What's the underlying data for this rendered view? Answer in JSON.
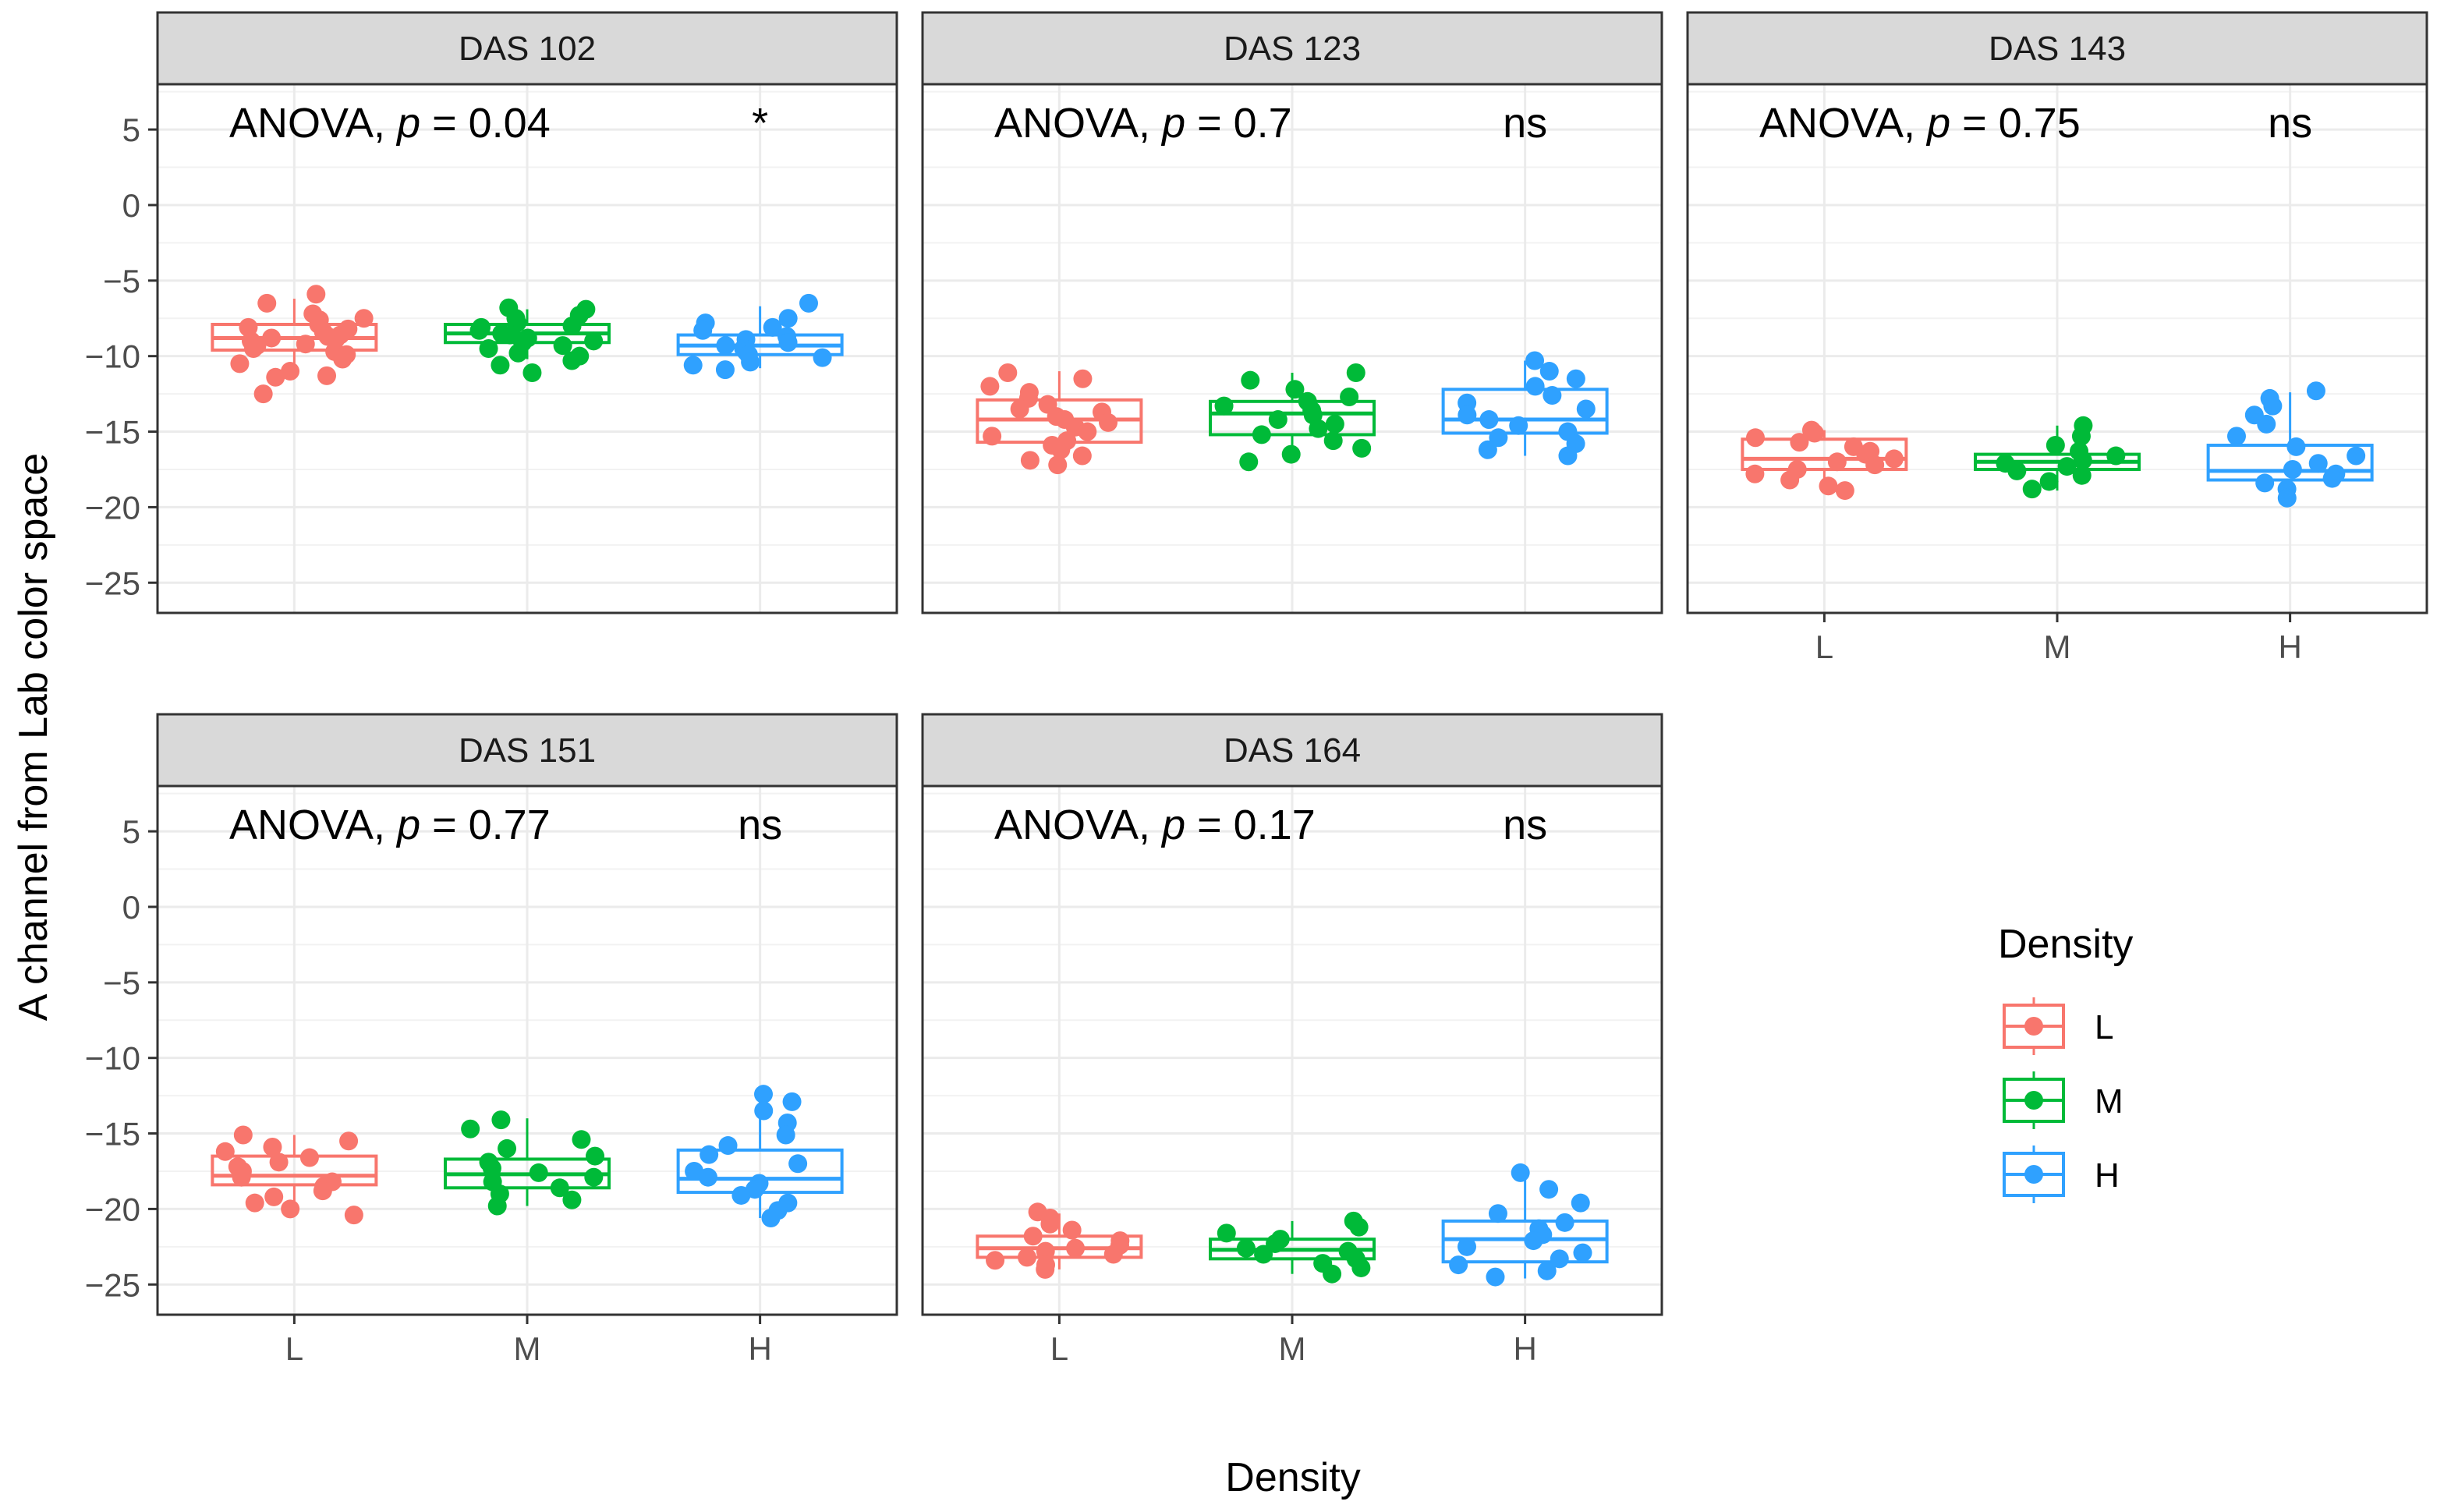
{
  "chart_data": {
    "type": "boxplot-jitter",
    "ylabel": "A channel from Lab color space",
    "xlabel": "Density",
    "categories": [
      "L",
      "M",
      "H"
    ],
    "yticks": [
      5,
      0,
      -5,
      -10,
      -15,
      -20,
      -25
    ],
    "ylim": [
      -27,
      8
    ],
    "grid": true,
    "legend": {
      "title": "Density",
      "placement": "right",
      "entries": [
        {
          "label": "L",
          "color": "#F8766D"
        },
        {
          "label": "M",
          "color": "#00BA38"
        },
        {
          "label": "H",
          "color": "#2FA1FF"
        }
      ]
    },
    "panels": [
      {
        "strip": "DAS 102",
        "anova_prefix": "ANOVA, ",
        "anova_p": "p",
        "anova_value": " = 0.04",
        "signif": "*",
        "boxes": [
          {
            "category": "L",
            "q1": -9.6,
            "median": -8.8,
            "q3": -7.9,
            "whisker_low": -11.5,
            "whisker_high": -6.2
          },
          {
            "category": "M",
            "q1": -9.1,
            "median": -8.5,
            "q3": -7.9,
            "whisker_low": -10.2,
            "whisker_high": -6.9
          },
          {
            "category": "H",
            "q1": -9.9,
            "median": -9.3,
            "q3": -8.6,
            "whisker_low": -10.8,
            "whisker_high": -6.7
          }
        ],
        "points": [
          {
            "category": "L",
            "values": [
              -5.9,
              -6.5,
              -7.2,
              -7.5,
              -7.6,
              -7.9,
              -8.1,
              -8.2,
              -8.4,
              -8.6,
              -8.7,
              -8.8,
              -8.9,
              -9.0,
              -9.2,
              -9.3,
              -9.5,
              -9.7,
              -9.9,
              -10.2,
              -10.5,
              -11.0,
              -11.3,
              -11.4,
              -12.5
            ]
          },
          {
            "category": "M",
            "values": [
              -6.8,
              -6.9,
              -7.3,
              -7.5,
              -7.8,
              -8.0,
              -8.1,
              -8.3,
              -8.5,
              -8.6,
              -8.8,
              -9.0,
              -9.1,
              -9.3,
              -9.5,
              -9.8,
              -10.0,
              -10.3,
              -10.6,
              -11.1
            ]
          },
          {
            "category": "H",
            "values": [
              -6.5,
              -7.5,
              -7.8,
              -8.1,
              -8.3,
              -8.7,
              -8.9,
              -9.1,
              -9.3,
              -9.5,
              -9.7,
              -9.9,
              -10.1,
              -10.4,
              -10.6,
              -10.9
            ]
          }
        ]
      },
      {
        "strip": "DAS 123",
        "anova_prefix": "ANOVA, ",
        "anova_p": "p",
        "anova_value": " = 0.7",
        "signif": "ns",
        "boxes": [
          {
            "category": "L",
            "q1": -15.7,
            "median": -14.2,
            "q3": -12.9,
            "whisker_low": -17.3,
            "whisker_high": -11.0
          },
          {
            "category": "M",
            "q1": -15.2,
            "median": -13.8,
            "q3": -13.0,
            "whisker_low": -17.0,
            "whisker_high": -11.1
          },
          {
            "category": "H",
            "q1": -15.1,
            "median": -14.2,
            "q3": -12.2,
            "whisker_low": -16.6,
            "whisker_high": -10.3
          }
        ],
        "points": [
          {
            "category": "L",
            "values": [
              -11.1,
              -11.5,
              -12.0,
              -12.4,
              -12.8,
              -13.2,
              -13.5,
              -13.7,
              -14.0,
              -14.2,
              -14.4,
              -14.7,
              -15.0,
              -15.3,
              -15.6,
              -15.9,
              -16.2,
              -16.6,
              -16.9,
              -17.2
            ]
          },
          {
            "category": "M",
            "values": [
              -11.1,
              -11.6,
              -12.2,
              -12.7,
              -13.0,
              -13.3,
              -13.6,
              -13.9,
              -14.2,
              -14.5,
              -14.8,
              -15.2,
              -15.6,
              -16.1,
              -16.5,
              -17.0
            ]
          },
          {
            "category": "H",
            "values": [
              -10.3,
              -11.0,
              -11.5,
              -12.0,
              -12.6,
              -13.1,
              -13.5,
              -13.9,
              -14.2,
              -14.6,
              -15.0,
              -15.4,
              -15.8,
              -16.2,
              -16.6
            ]
          }
        ]
      },
      {
        "strip": "DAS 143",
        "anova_prefix": "ANOVA, ",
        "anova_p": "p",
        "anova_value": " = 0.75",
        "signif": "ns",
        "boxes": [
          {
            "category": "L",
            "q1": -17.5,
            "median": -16.8,
            "q3": -15.5,
            "whisker_low": -18.9,
            "whisker_high": -14.9
          },
          {
            "category": "M",
            "q1": -17.5,
            "median": -17.0,
            "q3": -16.5,
            "whisker_low": -18.9,
            "whisker_high": -14.6
          },
          {
            "category": "H",
            "q1": -18.2,
            "median": -17.6,
            "q3": -15.9,
            "whisker_low": -19.5,
            "whisker_high": -12.4
          }
        ],
        "points": [
          {
            "category": "L",
            "values": [
              -14.9,
              -15.1,
              -15.4,
              -15.7,
              -16.0,
              -16.3,
              -16.5,
              -16.8,
              -17.0,
              -17.2,
              -17.5,
              -17.8,
              -18.2,
              -18.6,
              -18.9
            ]
          },
          {
            "category": "M",
            "values": [
              -14.6,
              -15.3,
              -15.9,
              -16.3,
              -16.6,
              -16.9,
              -17.1,
              -17.3,
              -17.6,
              -17.9,
              -18.3,
              -18.8
            ]
          },
          {
            "category": "H",
            "values": [
              -12.3,
              -12.8,
              -13.3,
              -13.9,
              -14.5,
              -15.3,
              -16.0,
              -16.6,
              -17.1,
              -17.5,
              -17.8,
              -18.1,
              -18.4,
              -18.8,
              -19.4
            ]
          }
        ]
      },
      {
        "strip": "DAS 151",
        "anova_prefix": "ANOVA, ",
        "anova_p": "p",
        "anova_value": " = 0.77",
        "signif": "ns",
        "boxes": [
          {
            "category": "L",
            "q1": -18.4,
            "median": -17.8,
            "q3": -16.5,
            "whisker_low": -20.4,
            "whisker_high": -15.1
          },
          {
            "category": "M",
            "q1": -18.6,
            "median": -17.7,
            "q3": -16.7,
            "whisker_low": -19.8,
            "whisker_high": -14.0
          },
          {
            "category": "H",
            "q1": -18.9,
            "median": -18.0,
            "q3": -16.1,
            "whisker_low": -20.6,
            "whisker_high": -12.4
          }
        ],
        "points": [
          {
            "category": "L",
            "values": [
              -15.1,
              -15.5,
              -15.9,
              -16.2,
              -16.6,
              -16.9,
              -17.2,
              -17.5,
              -17.7,
              -17.9,
              -18.2,
              -18.5,
              -18.8,
              -19.2,
              -19.6,
              -20.0,
              -20.4
            ]
          },
          {
            "category": "M",
            "values": [
              -14.1,
              -14.7,
              -15.4,
              -16.0,
              -16.5,
              -16.9,
              -17.3,
              -17.6,
              -17.9,
              -18.2,
              -18.6,
              -19.0,
              -19.4,
              -19.8
            ]
          },
          {
            "category": "H",
            "values": [
              -12.4,
              -12.9,
              -13.5,
              -14.3,
              -15.1,
              -15.8,
              -16.4,
              -17.0,
              -17.5,
              -17.9,
              -18.3,
              -18.7,
              -19.1,
              -19.6,
              -20.1,
              -20.6
            ]
          }
        ]
      },
      {
        "strip": "DAS 164",
        "anova_prefix": "ANOVA, ",
        "anova_p": "p",
        "anova_value": " = 0.17",
        "signif": "ns",
        "boxes": [
          {
            "category": "L",
            "q1": -23.2,
            "median": -22.6,
            "q3": -21.8,
            "whisker_low": -24.0,
            "whisker_high": -20.3
          },
          {
            "category": "M",
            "q1": -23.3,
            "median": -22.7,
            "q3": -22.0,
            "whisker_low": -24.3,
            "whisker_high": -20.8
          },
          {
            "category": "H",
            "q1": -23.5,
            "median": -22.0,
            "q3": -20.8,
            "whisker_low": -24.6,
            "whisker_high": -17.6
          }
        ],
        "points": [
          {
            "category": "L",
            "values": [
              -20.2,
              -20.6,
              -21.0,
              -21.4,
              -21.8,
              -22.1,
              -22.4,
              -22.6,
              -22.8,
              -23.0,
              -23.2,
              -23.4,
              -23.7,
              -24.0
            ]
          },
          {
            "category": "M",
            "values": [
              -20.8,
              -21.2,
              -21.6,
              -22.0,
              -22.3,
              -22.6,
              -22.8,
              -23.0,
              -23.3,
              -23.6,
              -23.9,
              -24.3
            ]
          },
          {
            "category": "H",
            "values": [
              -17.6,
              -18.7,
              -19.6,
              -20.3,
              -20.9,
              -21.3,
              -21.7,
              -22.1,
              -22.5,
              -22.9,
              -23.3,
              -23.7,
              -24.1,
              -24.5
            ]
          }
        ]
      }
    ]
  }
}
